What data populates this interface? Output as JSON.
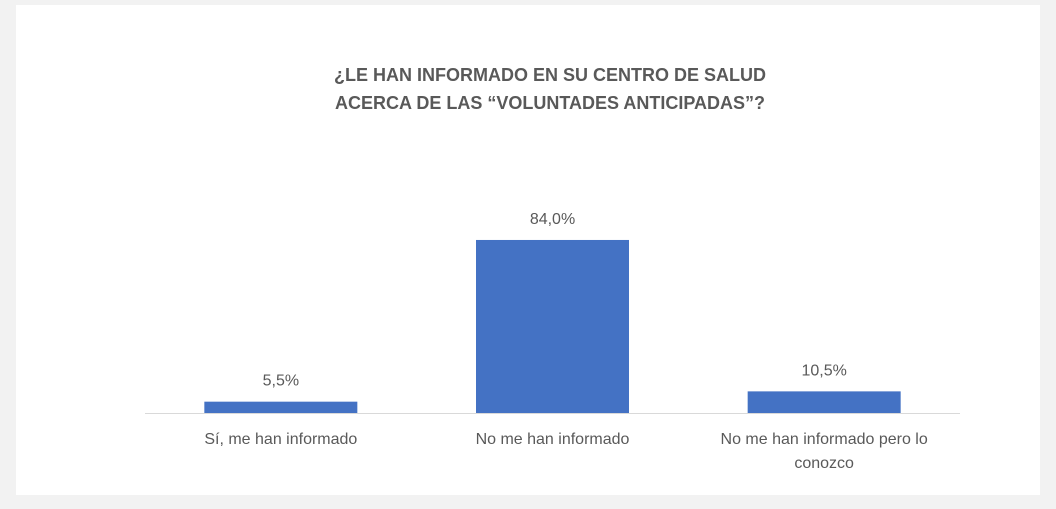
{
  "chart_data": {
    "type": "bar",
    "title": [
      "¿LE HAN INFORMADO EN SU CENTRO DE SALUD",
      "ACERCA DE LAS “VOLUNTADES ANTICIPADAS”?"
    ],
    "categories": [
      "Sí, me han informado",
      "No me han informado",
      "No me han informado pero lo conozco"
    ],
    "values": [
      5.5,
      84.0,
      10.5
    ],
    "value_labels": [
      "5,5%",
      "84,0%",
      "10,5%"
    ],
    "color": "#4472c4"
  }
}
